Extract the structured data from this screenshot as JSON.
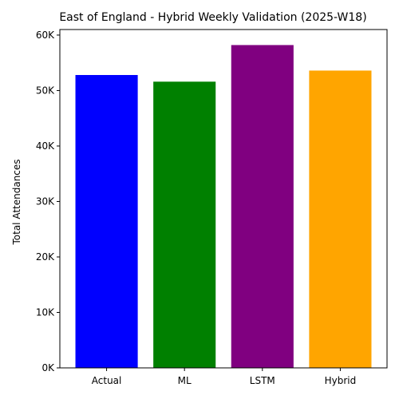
{
  "chart_data": {
    "type": "bar",
    "title": "East of England - Hybrid Weekly Validation (2025-W18)",
    "xlabel": "",
    "ylabel": "Total Attendances",
    "categories": [
      "Actual",
      "ML",
      "LSTM",
      "Hybrid"
    ],
    "values": [
      52800,
      51600,
      58200,
      53600
    ],
    "colors": [
      "#0000ff",
      "#008000",
      "#800080",
      "#ffa500"
    ],
    "ylim": [
      0,
      61000
    ],
    "yticks": [
      0,
      10000,
      20000,
      30000,
      40000,
      50000,
      60000
    ],
    "ytick_labels": [
      "0K",
      "10K",
      "20K",
      "30K",
      "40K",
      "50K",
      "60K"
    ],
    "grid": false,
    "legend": "none"
  }
}
